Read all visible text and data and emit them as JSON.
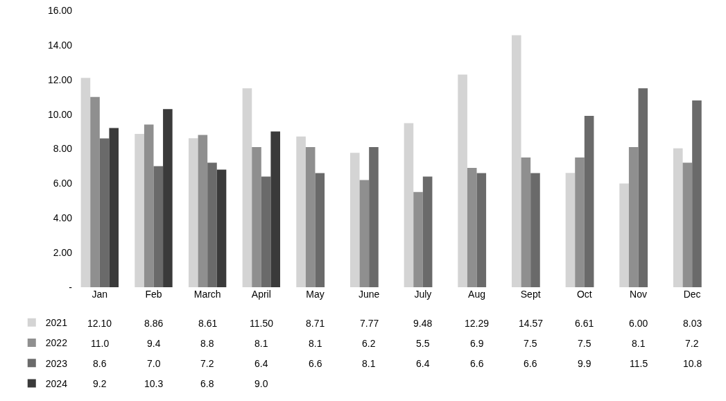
{
  "chart_data": {
    "type": "bar",
    "categories": [
      "Jan",
      "Feb",
      "March",
      "April",
      "May",
      "June",
      "July",
      "Aug",
      "Sept",
      "Oct",
      "Nov",
      "Dec"
    ],
    "series": [
      {
        "name": "2021",
        "color": "#d4d4d4",
        "values": [
          12.1,
          8.86,
          8.61,
          11.5,
          8.71,
          7.77,
          9.48,
          12.29,
          14.57,
          6.61,
          6.0,
          8.03
        ],
        "value_labels": [
          "12.10",
          "8.86",
          "8.61",
          "11.50",
          "8.71",
          "7.77",
          "9.48",
          "12.29",
          "14.57",
          "6.61",
          "6.00",
          "8.03"
        ]
      },
      {
        "name": "2022",
        "color": "#8f8f8f",
        "values": [
          11.0,
          9.4,
          8.8,
          8.1,
          8.1,
          6.2,
          5.5,
          6.9,
          7.5,
          7.5,
          8.1,
          7.2
        ],
        "value_labels": [
          "11.0",
          "9.4",
          "8.8",
          "8.1",
          "8.1",
          "6.2",
          "5.5",
          "6.9",
          "7.5",
          "7.5",
          "8.1",
          "7.2"
        ]
      },
      {
        "name": "2023",
        "color": "#6a6a6a",
        "values": [
          8.6,
          7.0,
          7.2,
          6.4,
          6.6,
          8.1,
          6.4,
          6.6,
          6.6,
          9.9,
          11.5,
          10.8
        ],
        "value_labels": [
          "8.6",
          "7.0",
          "7.2",
          "6.4",
          "6.6",
          "8.1",
          "6.4",
          "6.6",
          "6.6",
          "9.9",
          "11.5",
          "10.8"
        ]
      },
      {
        "name": "2024",
        "color": "#3a3a3a",
        "values": [
          9.2,
          10.3,
          6.8,
          9.0,
          null,
          null,
          null,
          null,
          null,
          null,
          null,
          null
        ],
        "value_labels": [
          "9.2",
          "10.3",
          "6.8",
          "9.0",
          null,
          null,
          null,
          null,
          null,
          null,
          null,
          null
        ]
      }
    ],
    "ylim": [
      0,
      16
    ],
    "yticks": [
      {
        "value": 0,
        "label": "-"
      },
      {
        "value": 2,
        "label": "2.00"
      },
      {
        "value": 4,
        "label": "4.00"
      },
      {
        "value": 6,
        "label": "6.00"
      },
      {
        "value": 8,
        "label": "8.00"
      },
      {
        "value": 10,
        "label": "10.00"
      },
      {
        "value": 12,
        "label": "12.00"
      },
      {
        "value": 14,
        "label": "14.00"
      },
      {
        "value": 16,
        "label": "16.00"
      }
    ],
    "grid": false,
    "legend": "bottom left"
  }
}
